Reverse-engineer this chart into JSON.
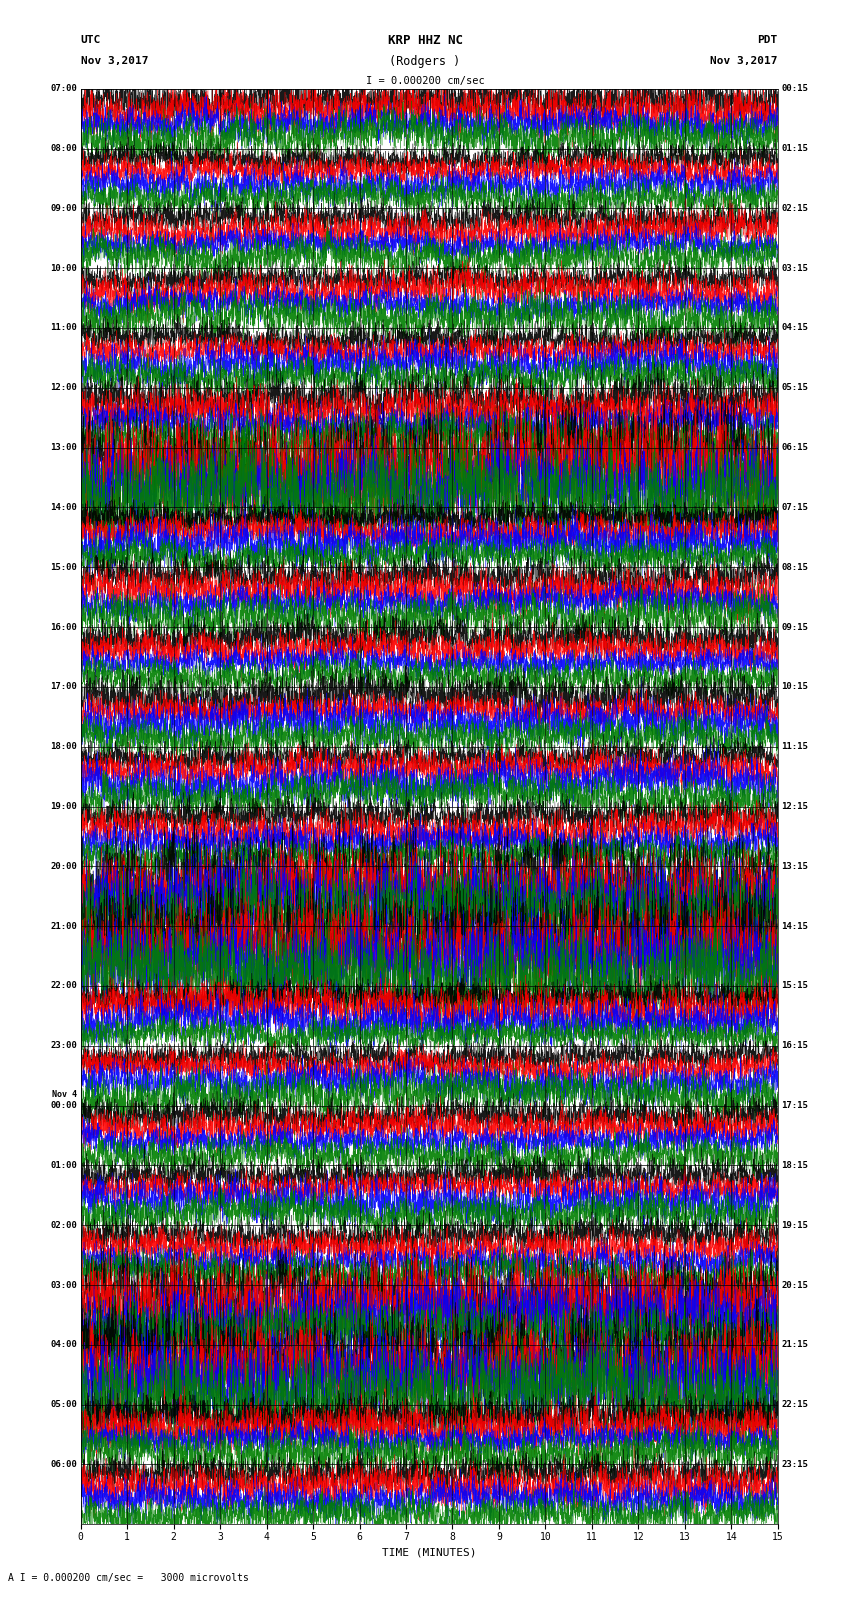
{
  "title_line1": "KRP HHZ NC",
  "title_line2": "(Rodgers )",
  "scale_label": "I = 0.000200 cm/sec",
  "bottom_label": "A I = 0.000200 cm/sec =   3000 microvolts",
  "utc_label": "UTC",
  "utc_date": "Nov 3,2017",
  "pdt_label": "PDT",
  "pdt_date": "Nov 3,2017",
  "xlabel": "TIME (MINUTES)",
  "left_times": [
    "07:00",
    "08:00",
    "09:00",
    "10:00",
    "11:00",
    "12:00",
    "13:00",
    "14:00",
    "15:00",
    "16:00",
    "17:00",
    "18:00",
    "19:00",
    "20:00",
    "21:00",
    "22:00",
    "23:00",
    "Nov 4\n00:00",
    "01:00",
    "02:00",
    "03:00",
    "04:00",
    "05:00",
    "06:00"
  ],
  "right_times": [
    "00:15",
    "01:15",
    "02:15",
    "03:15",
    "04:15",
    "05:15",
    "06:15",
    "07:15",
    "08:15",
    "09:15",
    "10:15",
    "11:15",
    "12:15",
    "13:15",
    "14:15",
    "15:15",
    "16:15",
    "17:15",
    "18:15",
    "19:15",
    "20:15",
    "21:15",
    "22:15",
    "23:15"
  ],
  "n_rows": 24,
  "n_traces_per_row": 4,
  "minutes_per_row": 15,
  "colors": [
    "black",
    "red",
    "blue",
    "green"
  ],
  "bg_color": "white",
  "fig_width": 8.5,
  "fig_height": 16.13
}
